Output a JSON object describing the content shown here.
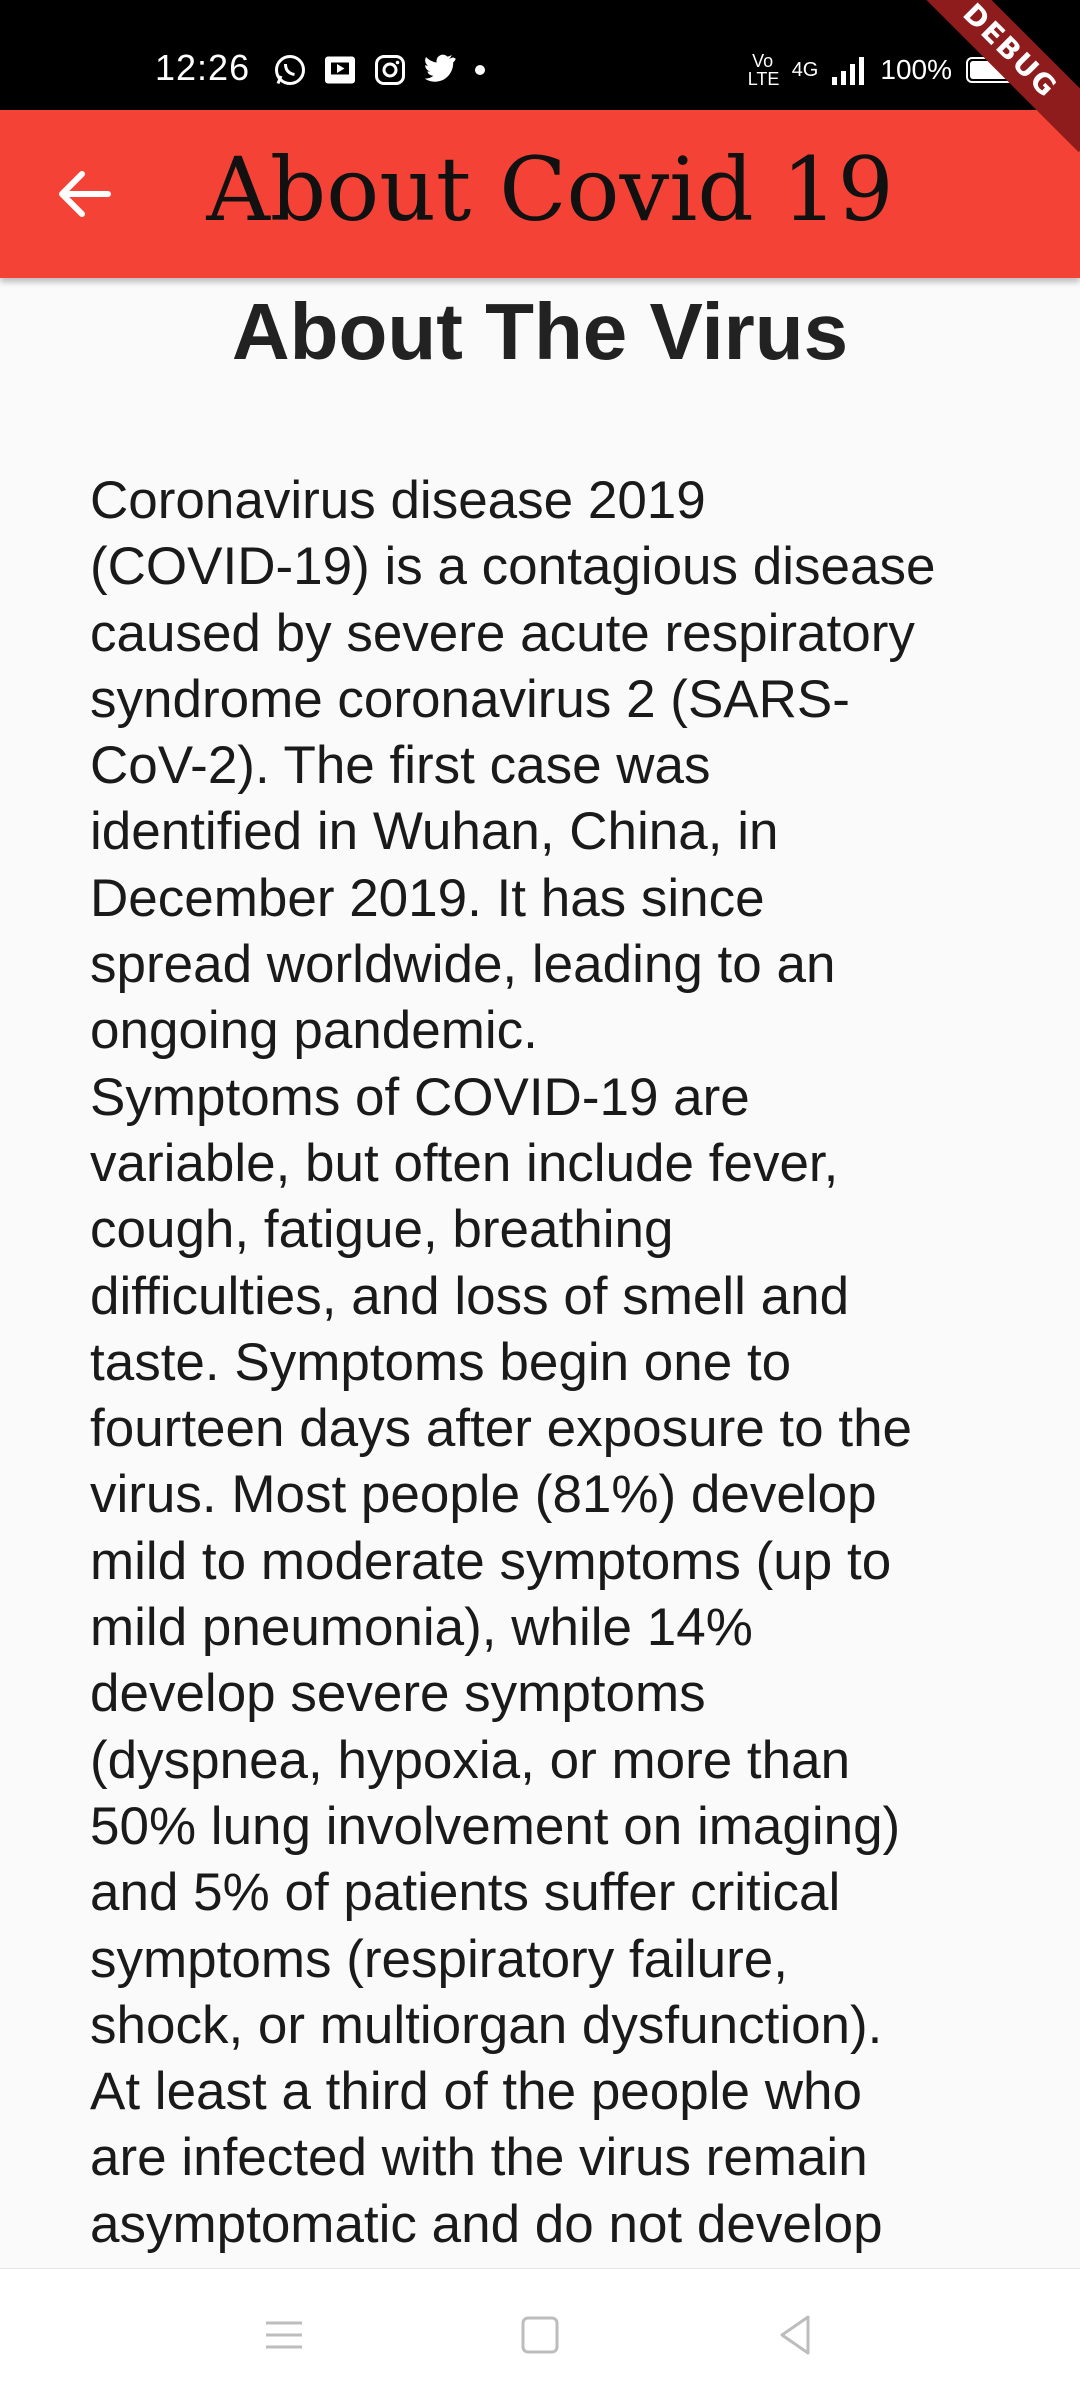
{
  "status_bar": {
    "time": "12:26",
    "left_icons": [
      "whatsapp-icon",
      "media-icon",
      "instagram-icon",
      "twitter-icon",
      "dot-icon"
    ],
    "network_label": "4G",
    "volte_label": "Vo LTE",
    "battery": "100%",
    "debug_banner": "DEBUG"
  },
  "app_bar": {
    "title": "About Covid 19",
    "back_icon": "arrow-left-icon",
    "color": "#f44336"
  },
  "main": {
    "heading": "About The Virus",
    "body": "Coronavirus disease 2019\n(COVID-19) is a contagious disease\ncaused by severe acute respiratory\nsyndrome coronavirus 2 (SARS-\nCoV-2). The first case was\nidentified in Wuhan, China, in\nDecember 2019. It has since\nspread worldwide, leading to an\nongoing pandemic.\nSymptoms of COVID-19 are\nvariable, but often include fever,\ncough, fatigue, breathing\ndifficulties, and loss of smell and\ntaste. Symptoms begin one to\nfourteen days after exposure to the\nvirus. Most people (81%) develop\nmild to moderate symptoms (up to\nmild pneumonia), while 14%\ndevelop severe symptoms\n(dyspnea, hypoxia, or more than\n50% lung involvement on imaging)\nand 5% of patients suffer critical\nsymptoms (respiratory failure,\nshock, or multiorgan dysfunction).\nAt least a third of the people who\nare infected with the virus remain\nasymptomatic and do not develop"
  },
  "nav_bar": {
    "icons": [
      "menu-icon",
      "home-square-icon",
      "back-triangle-icon"
    ]
  }
}
